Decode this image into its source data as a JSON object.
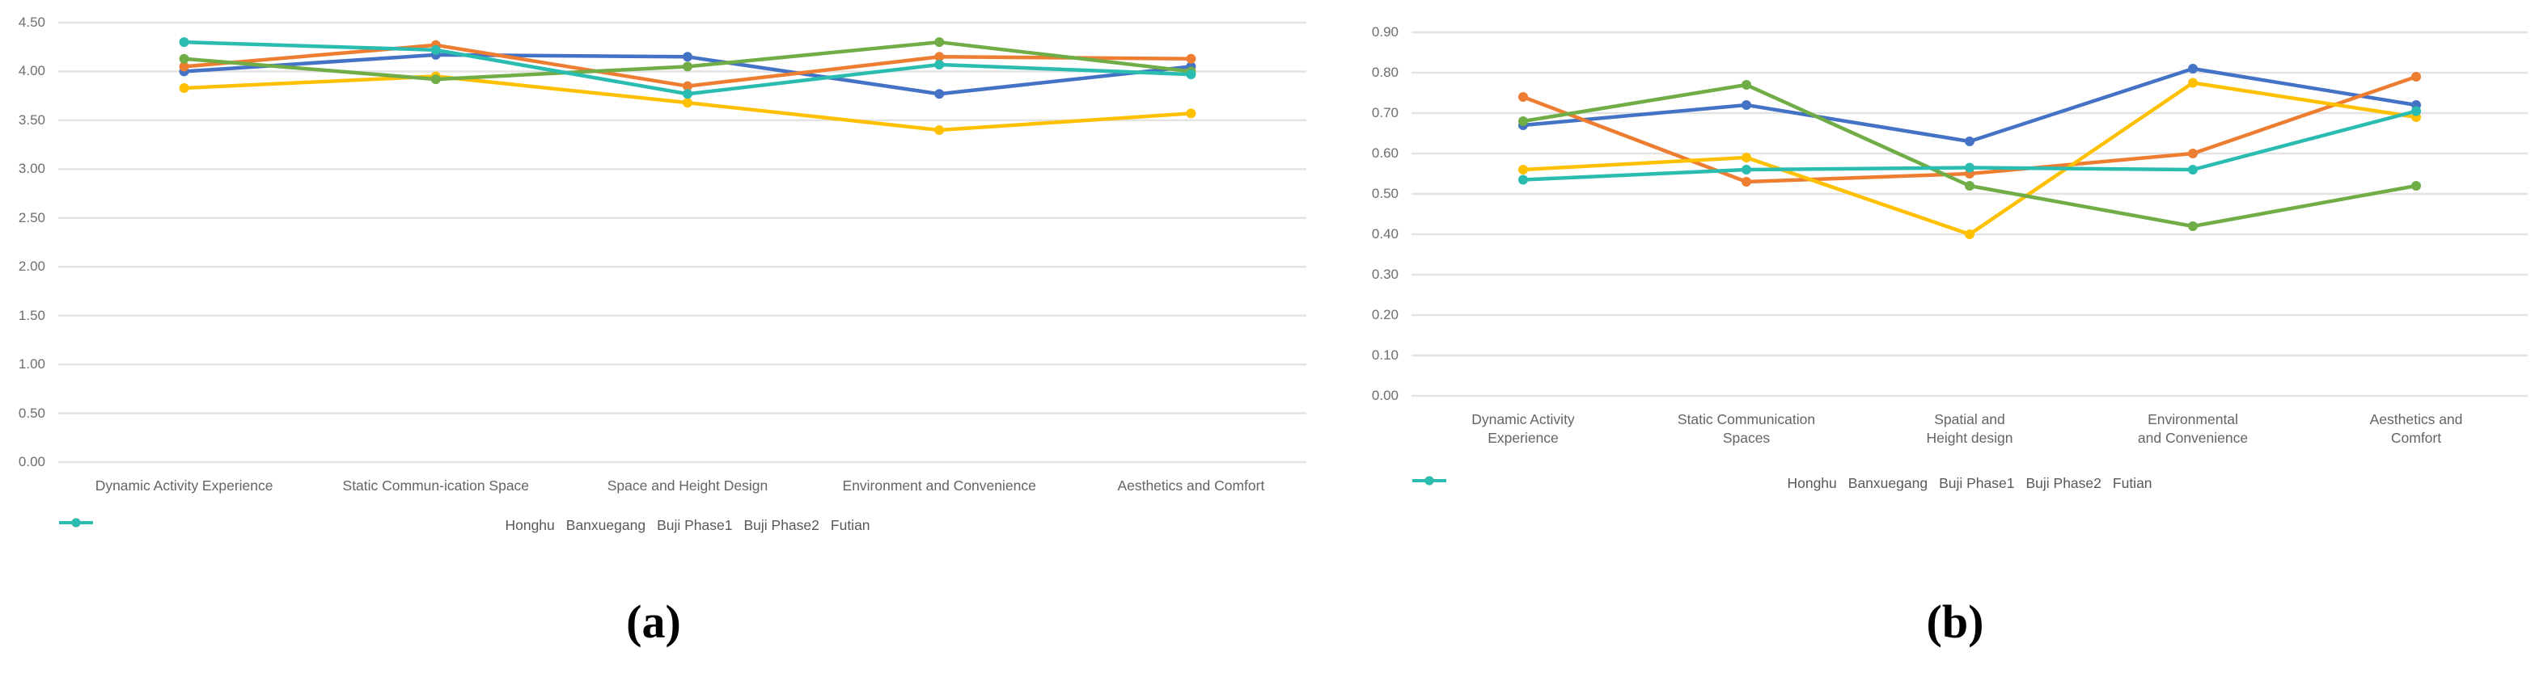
{
  "figure": {
    "captions": [
      "(a)",
      "(b)"
    ]
  },
  "chart_data": [
    {
      "id": "a",
      "type": "line",
      "title": "",
      "xlabel": "",
      "ylabel": "",
      "grid": true,
      "legend_position": "bottom",
      "ylim": [
        0,
        4.5
      ],
      "yticks": [
        "4.50",
        "4.00",
        "3.50",
        "3.00",
        "2.50",
        "2.00",
        "1.50",
        "1.00",
        "0.50",
        "0.00"
      ],
      "categories": [
        "Dynamic Activity Experience",
        "Static Commun-ication Space",
        "Space and Height Design",
        "Environment and Convenience",
        "Aesthetics and Comfort"
      ],
      "series": [
        {
          "name": "Honghu",
          "color": "#4472C4",
          "values": [
            4.0,
            4.17,
            4.15,
            3.77,
            4.05
          ]
        },
        {
          "name": "Banxuegang",
          "color": "#ED7D31",
          "values": [
            4.05,
            4.27,
            3.85,
            4.15,
            4.13
          ]
        },
        {
          "name": "Buji Phase1",
          "color": "#FFC000",
          "values": [
            3.83,
            3.95,
            3.68,
            3.4,
            3.57
          ]
        },
        {
          "name": "Buji Phase2",
          "color": "#70AD47",
          "values": [
            4.13,
            3.92,
            4.05,
            4.3,
            4.0
          ]
        },
        {
          "name": "Futian",
          "color": "#2ABCB0",
          "values": [
            4.3,
            4.22,
            3.77,
            4.07,
            3.97
          ]
        }
      ]
    },
    {
      "id": "b",
      "type": "line",
      "title": "",
      "xlabel": "",
      "ylabel": "",
      "grid": true,
      "legend_position": "bottom",
      "ylim": [
        0,
        0.9
      ],
      "yticks": [
        "0.90",
        "0.80",
        "0.70",
        "0.60",
        "0.50",
        "0.40",
        "0.30",
        "0.20",
        "0.10",
        "0.00"
      ],
      "categories": [
        "Dynamic Activity\nExperience",
        "Static Communication\nSpaces",
        "Spatial and\nHeight design",
        "Environmental\nand Convenience",
        "Aesthetics and\nComfort"
      ],
      "series": [
        {
          "name": "Honghu",
          "color": "#4472C4",
          "values": [
            0.67,
            0.72,
            0.63,
            0.81,
            0.72
          ]
        },
        {
          "name": "Banxuegang",
          "color": "#ED7D31",
          "values": [
            0.74,
            0.53,
            0.55,
            0.6,
            0.79
          ]
        },
        {
          "name": "Buji Phase1",
          "color": "#FFC000",
          "values": [
            0.56,
            0.59,
            0.4,
            0.775,
            0.69
          ]
        },
        {
          "name": "Buji Phase2",
          "color": "#70AD47",
          "values": [
            0.68,
            0.77,
            0.52,
            0.42,
            0.52
          ]
        },
        {
          "name": "Futian",
          "color": "#2ABCB0",
          "values": [
            0.535,
            0.56,
            0.565,
            0.56,
            0.705
          ]
        }
      ]
    }
  ]
}
